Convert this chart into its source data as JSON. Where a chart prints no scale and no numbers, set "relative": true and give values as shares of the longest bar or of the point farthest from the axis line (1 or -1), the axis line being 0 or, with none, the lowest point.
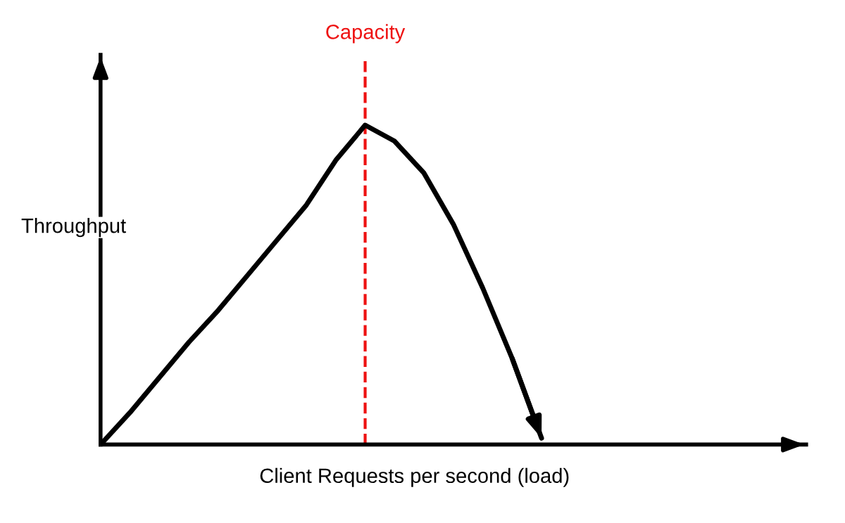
{
  "chart_data": {
    "type": "line",
    "relative": true,
    "xlabel": "Client Requests per second (load)",
    "ylabel": "Throughput",
    "categories": [
      null,
      null,
      null,
      null,
      null,
      null,
      null,
      null,
      null,
      null,
      null,
      null,
      null,
      null,
      null,
      null,
      null,
      null,
      null,
      null,
      null,
      null,
      null,
      null,
      null
    ],
    "series": [
      {
        "color": "#000000",
        "values": [
          0,
          0.1,
          0.21,
          0.32,
          0.42,
          0.53,
          0.64,
          0.75,
          0.89,
          1.0,
          0.95,
          0.85,
          0.69,
          0.49,
          0.27,
          0.02,
          null,
          null,
          null,
          null,
          null,
          null,
          null,
          null,
          null
        ]
      }
    ],
    "annotations": [
      "Capacity"
    ],
    "marker": "none",
    "line_style": "solid"
  }
}
